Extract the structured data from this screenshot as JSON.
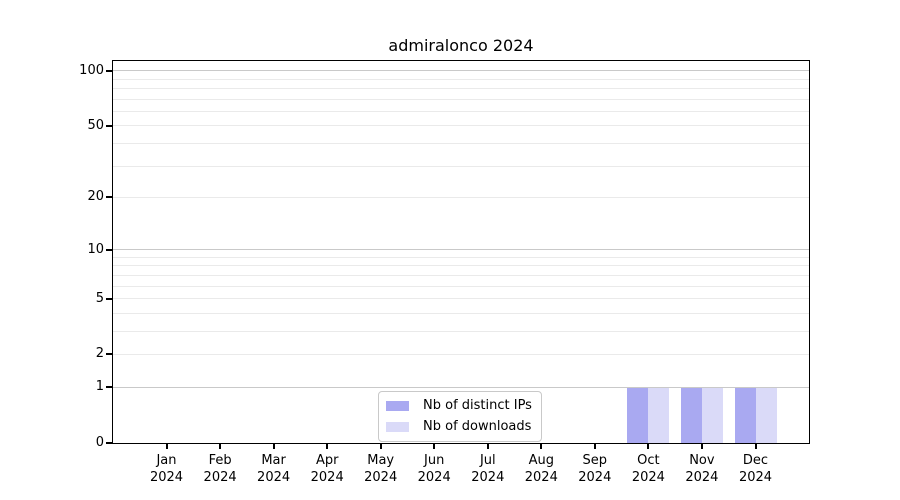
{
  "chart_data": {
    "type": "bar",
    "title": "admiralonco 2024",
    "categories": [
      "Jan",
      "Feb",
      "Mar",
      "Apr",
      "May",
      "Jun",
      "Jul",
      "Aug",
      "Sep",
      "Oct",
      "Nov",
      "Dec"
    ],
    "x_year_label": "2024",
    "series": [
      {
        "name": "Nb of distinct IPs",
        "color": "#a9a9f1",
        "values": [
          0,
          0,
          0,
          0,
          0,
          0,
          0,
          0,
          0,
          1,
          1,
          1
        ]
      },
      {
        "name": "Nb of downloads",
        "color": "#dadaf8",
        "values": [
          0,
          0,
          0,
          0,
          0,
          0,
          0,
          0,
          0,
          1,
          1,
          1
        ]
      }
    ],
    "xlabel": "",
    "ylabel": "",
    "yscale": "log10(1+y)",
    "ylim": [
      0,
      113
    ],
    "y_ticks": [
      0,
      1,
      2,
      5,
      10,
      20,
      50,
      100
    ],
    "y_minor_gridlines": [
      3,
      4,
      6,
      7,
      8,
      9,
      30,
      40,
      60,
      70,
      80,
      90
    ],
    "strong_gridline_values": [
      1,
      10,
      100
    ],
    "grid": true,
    "legend_position": "lower center",
    "colors": {
      "strong_grid": "#c9c9c9",
      "light_grid": "#eaeaea",
      "axis": "#000000",
      "text": "#000000",
      "legend_border": "#c9c9c9",
      "background": "#ffffff"
    }
  }
}
